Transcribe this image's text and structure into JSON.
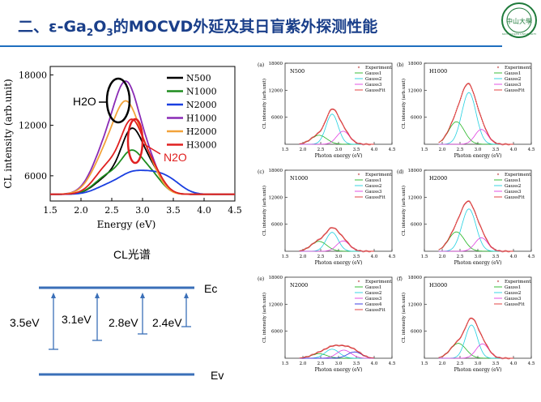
{
  "header": {
    "title_prefix": "二、ε-Ga",
    "title_sub2": "2",
    "title_mid": "O",
    "title_sub3": "3",
    "title_suffix": "的MOCVD外延及其日盲紫外探测性能",
    "logo_text": "中山大學",
    "logo_ring": "SUN YAT-SEN UNIVERSITY"
  },
  "colors": {
    "accent": "#1f6fbf",
    "title": "#1a3f8a"
  },
  "main_chart": {
    "caption": "CL光谱",
    "xlabel": "Energy (eV)",
    "ylabel": "CL intensity (arb.unit)",
    "xticks": [
      "1.5",
      "2.0",
      "2.5",
      "3.0",
      "3.5",
      "4.0",
      "4.5"
    ],
    "yticks": [
      "6000",
      "12000",
      "18000"
    ],
    "annotations": {
      "h2o": "H2O",
      "n2o": "N2O"
    }
  },
  "chart_data": [
    {
      "type": "line",
      "xlabel": "Energy (eV)",
      "ylabel": "CL intensity (arb.unit)",
      "xlim": [
        1.5,
        4.5
      ],
      "ylim": [
        3000,
        19000
      ],
      "legend_position": "top-right",
      "series": [
        {
          "name": "N500",
          "color": "#000000",
          "peaks": [
            {
              "a": 2000,
              "mu": 2.45,
              "s": 0.22
            },
            {
              "a": 6700,
              "mu": 2.82,
              "s": 0.17
            },
            {
              "a": 2900,
              "mu": 3.13,
              "s": 0.18
            }
          ],
          "base": 3800
        },
        {
          "name": "N1000",
          "color": "#1e8c1e",
          "peaks": [
            {
              "a": 2200,
              "mu": 2.45,
              "s": 0.22
            },
            {
              "a": 4200,
              "mu": 2.82,
              "s": 0.17
            },
            {
              "a": 2300,
              "mu": 3.13,
              "s": 0.18
            }
          ],
          "base": 3800
        },
        {
          "name": "N2000",
          "color": "#1a3fe0",
          "peaks": [
            {
              "a": 1000,
              "mu": 2.45,
              "s": 0.22
            },
            {
              "a": 2000,
              "mu": 2.82,
              "s": 0.2
            },
            {
              "a": 1800,
              "mu": 3.15,
              "s": 0.2
            },
            {
              "a": 1400,
              "mu": 3.45,
              "s": 0.2
            }
          ],
          "base": 3800
        },
        {
          "name": "H1000",
          "color": "#8a2bb5",
          "peaks": [
            {
              "a": 5000,
              "mu": 2.4,
              "s": 0.22
            },
            {
              "a": 11500,
              "mu": 2.75,
              "s": 0.2
            },
            {
              "a": 3300,
              "mu": 3.1,
              "s": 0.18
            }
          ],
          "base": 3800
        },
        {
          "name": "H2000",
          "color": "#f2a23a",
          "peaks": [
            {
              "a": 4300,
              "mu": 2.4,
              "s": 0.22
            },
            {
              "a": 9400,
              "mu": 2.75,
              "s": 0.2
            },
            {
              "a": 3000,
              "mu": 3.1,
              "s": 0.18
            }
          ],
          "base": 3800
        },
        {
          "name": "H3000",
          "color": "#e02020",
          "peaks": [
            {
              "a": 3300,
              "mu": 2.45,
              "s": 0.22
            },
            {
              "a": 7400,
              "mu": 2.82,
              "s": 0.17
            },
            {
              "a": 3200,
              "mu": 3.13,
              "s": 0.18
            }
          ],
          "base": 3800
        }
      ]
    },
    {
      "type": "line",
      "panel": "(a)",
      "title": "N500",
      "xlabel": "Photon energy (eV)",
      "ylabel": "CL intensity (arb.unit)",
      "xlim": [
        1.5,
        4.5
      ],
      "ylim": [
        0,
        18000
      ],
      "legend": [
        "Experiment",
        "Gauss1",
        "Gauss2",
        "Gauss3",
        "GaussFit"
      ],
      "gauss": [
        {
          "a": 2000,
          "mu": 2.45,
          "s": 0.22
        },
        {
          "a": 6700,
          "mu": 2.82,
          "s": 0.17
        },
        {
          "a": 2900,
          "mu": 3.13,
          "s": 0.18
        }
      ]
    },
    {
      "type": "line",
      "panel": "(b)",
      "title": "H1000",
      "xlabel": "Photon energy (eV)",
      "ylabel": "CL intensity (arb.unit)",
      "xlim": [
        1.5,
        4.5
      ],
      "ylim": [
        0,
        18000
      ],
      "legend": [
        "Experiment",
        "Gauss1",
        "Gauss2",
        "Gauss3",
        "GaussFit"
      ],
      "gauss": [
        {
          "a": 5000,
          "mu": 2.4,
          "s": 0.22
        },
        {
          "a": 11500,
          "mu": 2.75,
          "s": 0.2
        },
        {
          "a": 3300,
          "mu": 3.1,
          "s": 0.18
        }
      ]
    },
    {
      "type": "line",
      "panel": "(c)",
      "title": "N1000",
      "xlabel": "Photon energy (eV)",
      "ylabel": "CL intensity (arb.unit)",
      "xlim": [
        1.5,
        4.5
      ],
      "ylim": [
        0,
        18000
      ],
      "legend": [
        "Experiment",
        "Gauss1",
        "Gauss2",
        "Gauss3",
        "GaussFit"
      ],
      "gauss": [
        {
          "a": 2200,
          "mu": 2.45,
          "s": 0.22
        },
        {
          "a": 4200,
          "mu": 2.82,
          "s": 0.17
        },
        {
          "a": 2300,
          "mu": 3.13,
          "s": 0.18
        }
      ]
    },
    {
      "type": "line",
      "panel": "(d)",
      "title": "H2000",
      "xlabel": "Photon energy (eV)",
      "ylabel": "CL intensity (arb.unit)",
      "xlim": [
        1.5,
        4.5
      ],
      "ylim": [
        0,
        18000
      ],
      "legend": [
        "Experiment",
        "Gauss1",
        "Gauss2",
        "Gauss3",
        "GaussFit"
      ],
      "gauss": [
        {
          "a": 4300,
          "mu": 2.4,
          "s": 0.22
        },
        {
          "a": 9400,
          "mu": 2.75,
          "s": 0.2
        },
        {
          "a": 3000,
          "mu": 3.1,
          "s": 0.18
        }
      ]
    },
    {
      "type": "line",
      "panel": "(e)",
      "title": "N2000",
      "xlabel": "Photon energy (eV)",
      "ylabel": "CL intensity (arb.unit)",
      "xlim": [
        1.5,
        4.5
      ],
      "ylim": [
        0,
        18000
      ],
      "legend": [
        "Experiment",
        "Gauss1",
        "Gauss2",
        "Gauss3",
        "Gauss4",
        "GaussFit"
      ],
      "gauss": [
        {
          "a": 1000,
          "mu": 2.45,
          "s": 0.22
        },
        {
          "a": 2000,
          "mu": 2.82,
          "s": 0.2
        },
        {
          "a": 1800,
          "mu": 3.15,
          "s": 0.2
        },
        {
          "a": 1400,
          "mu": 3.45,
          "s": 0.2
        }
      ]
    },
    {
      "type": "line",
      "panel": "(f)",
      "title": "H3000",
      "xlabel": "Photon energy (eV)",
      "ylabel": "CL intensity (arb.unit)",
      "xlim": [
        1.5,
        4.5
      ],
      "ylim": [
        0,
        18000
      ],
      "legend": [
        "Experiment",
        "Gauss1",
        "Gauss2",
        "Gauss3",
        "GaussFit"
      ],
      "gauss": [
        {
          "a": 3300,
          "mu": 2.45,
          "s": 0.22
        },
        {
          "a": 7400,
          "mu": 2.82,
          "s": 0.17
        },
        {
          "a": 3200,
          "mu": 3.13,
          "s": 0.18
        }
      ]
    }
  ],
  "small_axes": {
    "xticks": [
      "1.5",
      "2.0",
      "2.5",
      "3.0",
      "3.5",
      "4.0",
      "4.5"
    ],
    "yticks": [
      "6000",
      "12000",
      "18000"
    ]
  },
  "gauss_colors": [
    "#22b522",
    "#22d0e0",
    "#e040e0",
    "#2a2ae0"
  ],
  "fit_color": "#e03030",
  "exp_color": "#d98c8c",
  "band_diagram": {
    "ec": "Ec",
    "ev": "Ev",
    "transitions": [
      "3.5eV",
      "3.1eV",
      "2.8eV",
      "2.4eV"
    ],
    "line_color": "#3a6fb8"
  }
}
